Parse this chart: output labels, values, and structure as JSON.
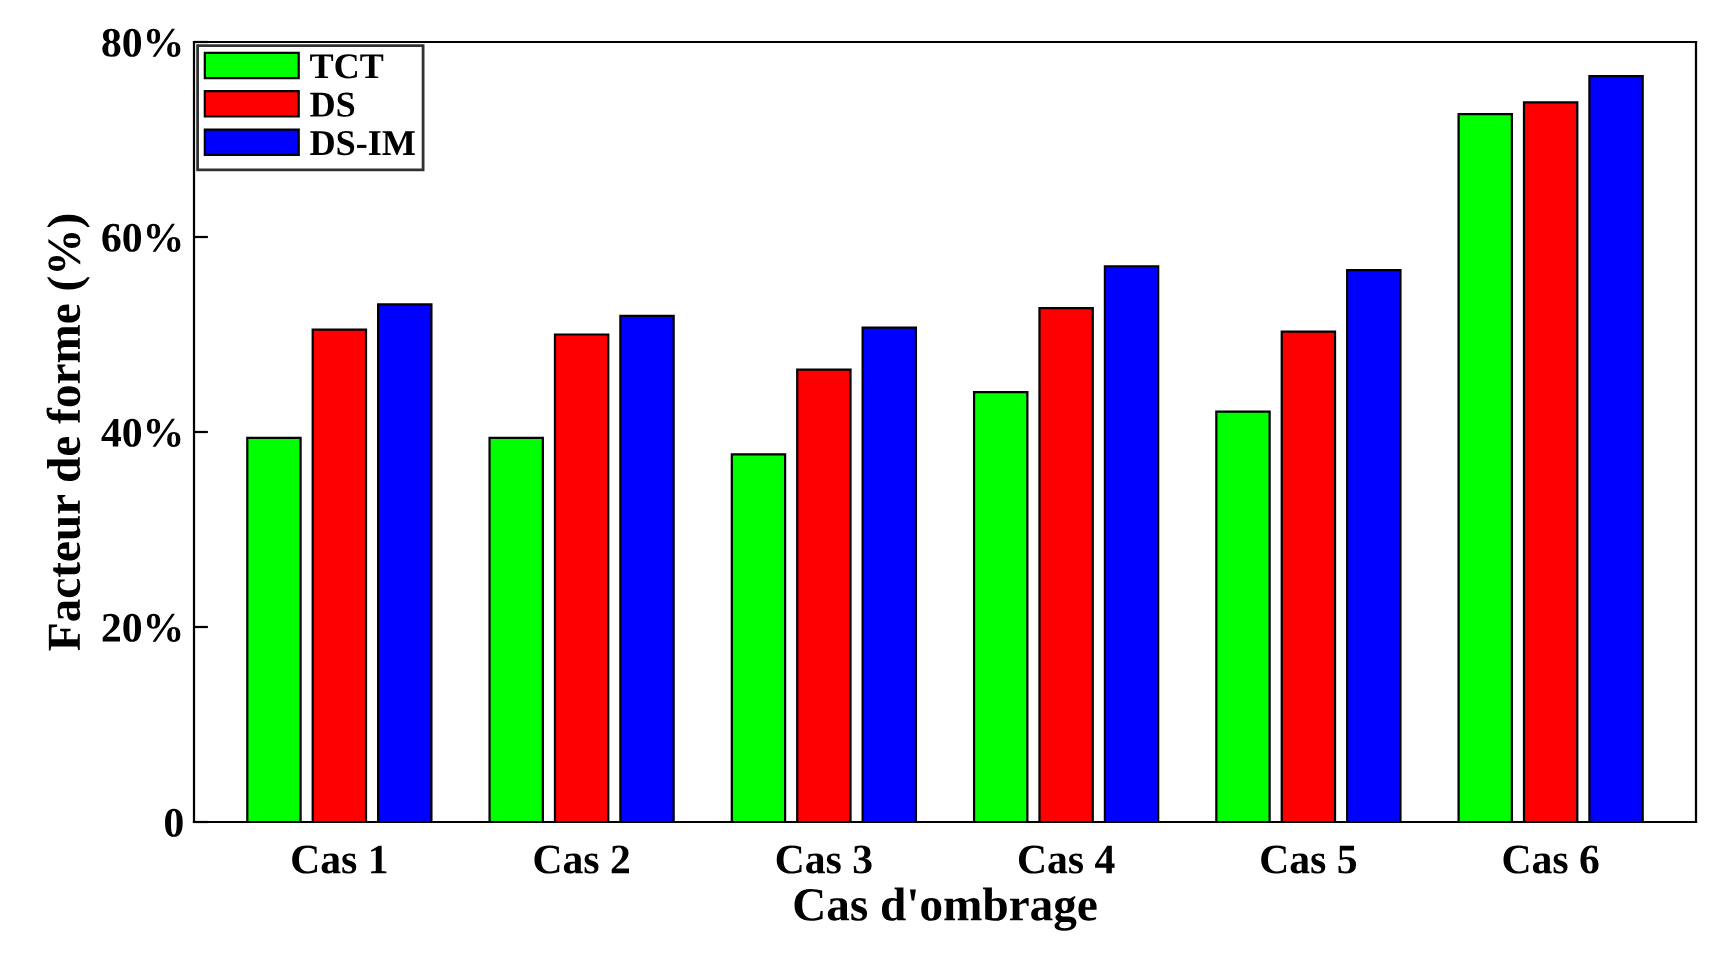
{
  "chart_data": {
    "type": "bar",
    "xlabel": "Cas d'ombrage",
    "ylabel": "Facteur de forme (%)",
    "categories": [
      "Cas 1",
      "Cas 2",
      "Cas 3",
      "Cas 4",
      "Cas 5",
      "Cas 6"
    ],
    "series": [
      {
        "name": "TCT",
        "color": "#00ff00",
        "values": [
          39.4,
          39.4,
          37.7,
          44.1,
          42.1,
          72.6
        ]
      },
      {
        "name": "DS",
        "color": "#ff0000",
        "values": [
          50.5,
          50.0,
          46.4,
          52.7,
          50.3,
          73.8
        ]
      },
      {
        "name": "DS-IM",
        "color": "#0000ff",
        "values": [
          53.1,
          51.9,
          50.7,
          57.0,
          56.6,
          76.5
        ]
      }
    ],
    "ylim": [
      0,
      80
    ],
    "yticks": [
      0,
      {
        "value": 20,
        "label": "20%"
      },
      {
        "value": 40,
        "label": "40%"
      },
      {
        "value": 60,
        "label": "60%"
      },
      {
        "value": 80,
        "label": "80%"
      }
    ],
    "grid": false,
    "legend": "top left"
  }
}
